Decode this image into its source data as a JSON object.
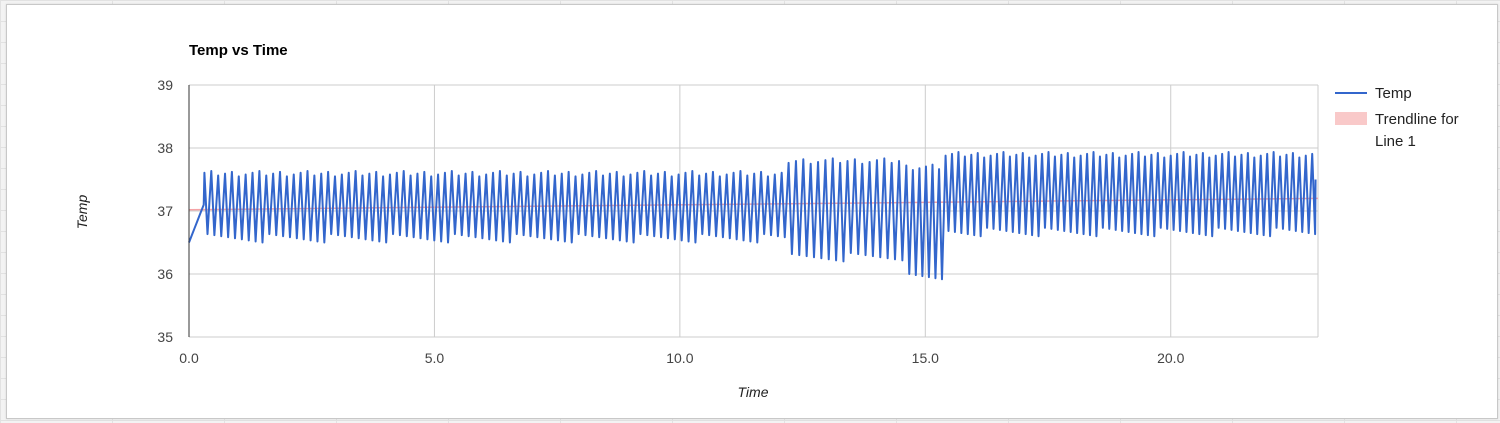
{
  "chart_data": {
    "type": "line",
    "title": "Temp vs Time",
    "xlabel": "Time",
    "ylabel": "Temp",
    "xlim": [
      0,
      23
    ],
    "ylim": [
      35,
      39
    ],
    "x_ticks": [
      "0.0",
      "5.0",
      "10.0",
      "15.0",
      "20.0"
    ],
    "x_tick_values": [
      0,
      5,
      10,
      15,
      20
    ],
    "y_ticks": [
      "35",
      "36",
      "37",
      "38",
      "39"
    ],
    "y_tick_values": [
      35,
      36,
      37,
      38,
      39
    ],
    "grid": true,
    "legend_position": "right",
    "series": [
      {
        "name": "Temp",
        "color": "#3366cc",
        "segments": [
          {
            "x_start": 0.0,
            "x_end": 0.3,
            "rise_from": 36.5,
            "rise_to": 37.1
          },
          {
            "x_start": 0.3,
            "x_end": 12.2,
            "low": 36.5,
            "high": 37.6,
            "cycles": 85
          },
          {
            "x_start": 12.2,
            "x_end": 14.6,
            "low": 36.2,
            "high": 37.8,
            "cycles": 16
          },
          {
            "x_start": 14.6,
            "x_end": 15.4,
            "low": 35.9,
            "high": 37.7,
            "cycles": 6
          },
          {
            "x_start": 15.4,
            "x_end": 23.0,
            "low": 36.6,
            "high": 37.9,
            "cycles": 58
          }
        ]
      },
      {
        "name": "Trendline for Line 1",
        "color": "#f5a3a6",
        "type": "linear",
        "y_at_xmin": 37.02,
        "y_at_xmax": 37.2
      }
    ],
    "legend": [
      {
        "label_lines": [
          "Temp"
        ],
        "color": "#3366cc",
        "kind": "line"
      },
      {
        "label_lines": [
          "Trendline for",
          "Line 1"
        ],
        "color": "#f9c9c9",
        "kind": "box"
      }
    ]
  }
}
